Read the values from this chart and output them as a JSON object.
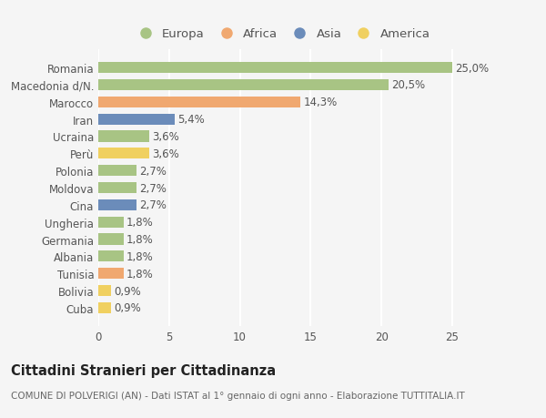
{
  "countries": [
    "Romania",
    "Macedonia d/N.",
    "Marocco",
    "Iran",
    "Ucraina",
    "Perù",
    "Polonia",
    "Moldova",
    "Cina",
    "Ungheria",
    "Germania",
    "Albania",
    "Tunisia",
    "Bolivia",
    "Cuba"
  ],
  "values": [
    25.0,
    20.5,
    14.3,
    5.4,
    3.6,
    3.6,
    2.7,
    2.7,
    2.7,
    1.8,
    1.8,
    1.8,
    1.8,
    0.9,
    0.9
  ],
  "labels": [
    "25,0%",
    "20,5%",
    "14,3%",
    "5,4%",
    "3,6%",
    "3,6%",
    "2,7%",
    "2,7%",
    "2,7%",
    "1,8%",
    "1,8%",
    "1,8%",
    "1,8%",
    "0,9%",
    "0,9%"
  ],
  "continents": [
    "Europa",
    "Europa",
    "Africa",
    "Asia",
    "Europa",
    "America",
    "Europa",
    "Europa",
    "Asia",
    "Europa",
    "Europa",
    "Europa",
    "Africa",
    "America",
    "America"
  ],
  "continent_colors": {
    "Europa": "#a8c484",
    "Africa": "#f0a870",
    "Asia": "#6b8cba",
    "America": "#f0d060"
  },
  "legend_order": [
    "Europa",
    "Africa",
    "Asia",
    "America"
  ],
  "title": "Cittadini Stranieri per Cittadinanza",
  "subtitle": "COMUNE DI POLVERIGI (AN) - Dati ISTAT al 1° gennaio di ogni anno - Elaborazione TUTTITALIA.IT",
  "xlim": [
    0,
    27
  ],
  "xticks": [
    0,
    5,
    10,
    15,
    20,
    25
  ],
  "background_color": "#f5f5f5",
  "grid_color": "#ffffff",
  "bar_height": 0.65,
  "label_fontsize": 8.5,
  "tick_fontsize": 8.5,
  "title_fontsize": 10.5,
  "subtitle_fontsize": 7.5
}
